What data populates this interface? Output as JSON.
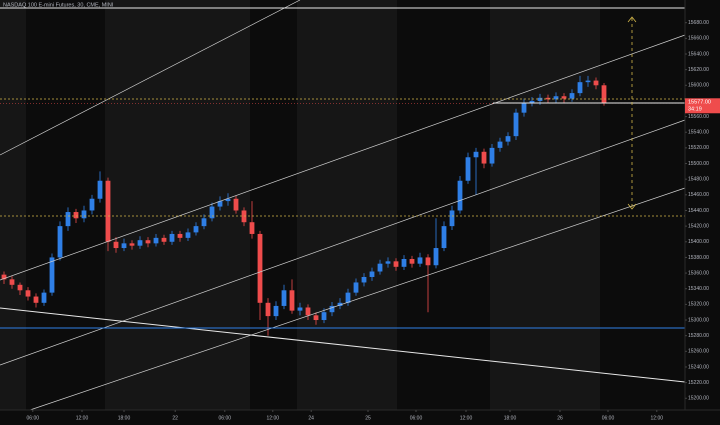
{
  "chart_data": {
    "type": "candlestick",
    "title": "NASDAQ 100 E-mini Futures, 30, CME, MINI",
    "open": [
      15358,
      15352,
      15345,
      15338,
      15330,
      15322,
      15335,
      15380,
      15420,
      15438,
      15430,
      15440,
      15455,
      15478,
      15400,
      15392,
      15398,
      15395,
      15402,
      15398,
      15405,
      15400,
      15410,
      15405,
      15412,
      15420,
      15430,
      15445,
      15452,
      15455,
      15440,
      15425,
      15410,
      15322,
      15305,
      15318,
      15338,
      15312,
      15316,
      15306,
      15300,
      15310,
      15318,
      15322,
      15335,
      15348,
      15355,
      15362,
      15372,
      15375,
      15368,
      15378,
      15372,
      15380,
      15370,
      15392,
      15420,
      15440,
      15478,
      15508,
      15515,
      15500,
      15520,
      15528,
      15535,
      15565,
      15578,
      15580,
      15584,
      15582,
      15586,
      15583,
      15590,
      15604,
      15606,
      15600
    ],
    "high": [
      15362,
      15356,
      15348,
      15342,
      15334,
      15339,
      15385,
      15426,
      15444,
      15442,
      15446,
      15460,
      15490,
      15482,
      15406,
      15404,
      15402,
      15407,
      15406,
      15410,
      15409,
      15414,
      15414,
      15417,
      15425,
      15435,
      15450,
      15458,
      15462,
      15459,
      15444,
      15452,
      15414,
      15328,
      15324,
      15345,
      15352,
      15322,
      15320,
      15310,
      15315,
      15323,
      15328,
      15340,
      15353,
      15360,
      15367,
      15377,
      15380,
      15379,
      15383,
      15382,
      15386,
      15384,
      15430,
      15426,
      15446,
      15484,
      15514,
      15520,
      15519,
      15525,
      15533,
      15540,
      15570,
      15583,
      15585,
      15589,
      15588,
      15591,
      15590,
      15595,
      15612,
      15612,
      15610,
      15603
    ],
    "low": [
      15346,
      15340,
      15332,
      15325,
      15316,
      15318,
      15331,
      15376,
      15414,
      15424,
      15425,
      15435,
      15450,
      15388,
      15386,
      15388,
      15390,
      15391,
      15393,
      15394,
      15396,
      15396,
      15400,
      15401,
      15408,
      15416,
      15426,
      15440,
      15446,
      15436,
      15420,
      15404,
      15300,
      15280,
      15300,
      15314,
      15308,
      15306,
      15300,
      15294,
      15296,
      15305,
      15314,
      15318,
      15331,
      15343,
      15350,
      15358,
      15367,
      15363,
      15364,
      15367,
      15368,
      15310,
      15366,
      15388,
      15415,
      15436,
      15474,
      15460,
      15494,
      15496,
      15515,
      15523,
      15530,
      15560,
      15573,
      15575,
      15577,
      15578,
      15578,
      15579,
      15586,
      15598,
      15595,
      15574
    ],
    "close": [
      15352,
      15345,
      15338,
      15330,
      15322,
      15335,
      15380,
      15420,
      15438,
      15430,
      15440,
      15455,
      15478,
      15400,
      15392,
      15398,
      15395,
      15402,
      15398,
      15405,
      15400,
      15410,
      15405,
      15412,
      15420,
      15430,
      15445,
      15452,
      15455,
      15440,
      15425,
      15410,
      15322,
      15305,
      15318,
      15338,
      15312,
      15316,
      15306,
      15300,
      15310,
      15318,
      15322,
      15335,
      15348,
      15355,
      15362,
      15372,
      15375,
      15368,
      15378,
      15372,
      15380,
      15370,
      15392,
      15420,
      15440,
      15478,
      15508,
      15515,
      15500,
      15520,
      15528,
      15535,
      15565,
      15578,
      15580,
      15584,
      15582,
      15586,
      15583,
      15590,
      15604,
      15606,
      15600,
      15577
    ],
    "up_color": "#2f7fe6",
    "down_color": "#ef4c4c",
    "ylim": [
      15185,
      15709
    ],
    "yticks": [
      {
        "value": 15200,
        "label": "15200.00"
      },
      {
        "value": 15220,
        "label": "15220.00"
      },
      {
        "value": 15240,
        "label": "15240.00"
      },
      {
        "value": 15260,
        "label": "15260.00"
      },
      {
        "value": 15280,
        "label": "15280.00"
      },
      {
        "value": 15300,
        "label": "15300.00"
      },
      {
        "value": 15320,
        "label": "15320.00"
      },
      {
        "value": 15340,
        "label": "15340.00"
      },
      {
        "value": 15360,
        "label": "15360.00"
      },
      {
        "value": 15380,
        "label": "15380.00"
      },
      {
        "value": 15400,
        "label": "15400.00"
      },
      {
        "value": 15420,
        "label": "15420.00"
      },
      {
        "value": 15440,
        "label": "15440.00"
      },
      {
        "value": 15460,
        "label": "15460.00"
      },
      {
        "value": 15480,
        "label": "15480.00"
      },
      {
        "value": 15500,
        "label": "15500.00"
      },
      {
        "value": 15520,
        "label": "15520.00"
      },
      {
        "value": 15540,
        "label": "15540.00"
      },
      {
        "value": 15560,
        "label": "15560.00"
      },
      {
        "value": 15600,
        "label": "15600.00"
      },
      {
        "value": 15620,
        "label": "15620.00"
      },
      {
        "value": 15640,
        "label": "15640.00"
      },
      {
        "value": 15660,
        "label": "15660.00"
      },
      {
        "value": 15680,
        "label": "15680.00"
      }
    ],
    "xlim": [
      -0.5,
      85.125
    ],
    "xticks": [
      {
        "value": 3.6,
        "label": "06:00"
      },
      {
        "value": 9.75,
        "label": "12:00"
      },
      {
        "value": 15,
        "label": "18:00"
      },
      {
        "value": 21.4,
        "label": "22"
      },
      {
        "value": 27.6,
        "label": "06:00"
      },
      {
        "value": 33.6,
        "label": "12:00"
      },
      {
        "value": 38.4,
        "label": "24"
      },
      {
        "value": 45.5,
        "label": "25"
      },
      {
        "value": 51.5,
        "label": "06:00"
      },
      {
        "value": 57.75,
        "label": "12:00"
      },
      {
        "value": 63.25,
        "label": "18:00"
      },
      {
        "value": 69.5,
        "label": "26"
      },
      {
        "value": 75.5,
        "label": "06:00"
      },
      {
        "value": 81.6,
        "label": "12:00"
      }
    ],
    "last_price": {
      "value": 15577,
      "label": "15577.00"
    },
    "countdown": "34:19"
  }
}
